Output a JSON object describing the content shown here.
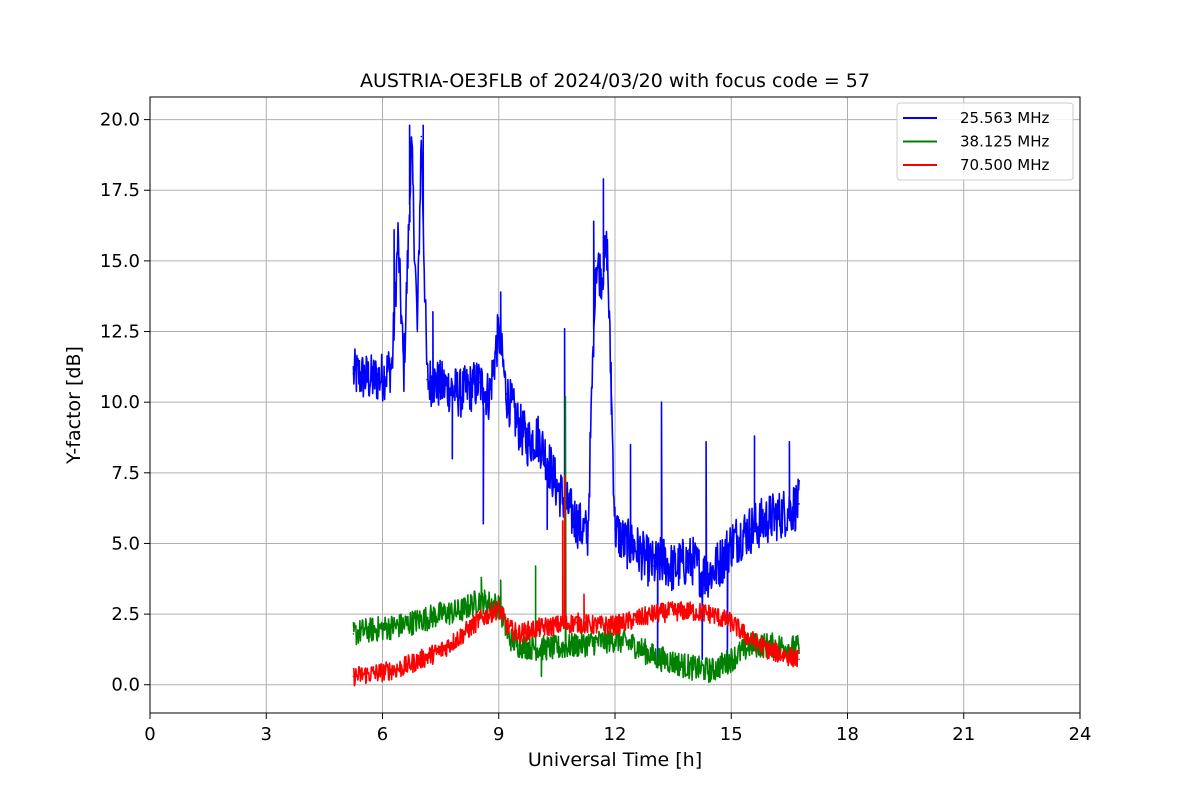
{
  "chart_data": {
    "type": "line",
    "title": "AUSTRIA-OE3FLB of 2024/03/20 with focus code = 57",
    "xlabel": "Universal Time [h]",
    "ylabel": "Y-factor [dB]",
    "xlim": [
      0,
      24
    ],
    "ylim": [
      -1.0,
      20.8
    ],
    "x_ticks": [
      0,
      3,
      6,
      9,
      12,
      15,
      18,
      21,
      24
    ],
    "x_tick_labels": [
      "0",
      "3",
      "6",
      "9",
      "12",
      "15",
      "18",
      "21",
      "24"
    ],
    "y_ticks": [
      0.0,
      2.5,
      5.0,
      7.5,
      10.0,
      12.5,
      15.0,
      17.5,
      20.0
    ],
    "y_tick_labels": [
      "0.0",
      "2.5",
      "5.0",
      "7.5",
      "10.0",
      "12.5",
      "15.0",
      "17.5",
      "20.0"
    ],
    "grid": true,
    "legend_position": "top-right",
    "series": [
      {
        "name": "25.563 MHz",
        "color": "#0000ff",
        "points": [
          [
            5.25,
            11.0
          ],
          [
            5.5,
            10.9
          ],
          [
            5.75,
            10.8
          ],
          [
            6.0,
            10.9
          ],
          [
            6.25,
            11.3
          ],
          [
            6.4,
            15.8
          ],
          [
            6.55,
            11.0
          ],
          [
            6.75,
            19.0
          ],
          [
            6.9,
            12.5
          ],
          [
            7.0,
            19.4
          ],
          [
            7.15,
            10.8
          ],
          [
            7.5,
            10.6
          ],
          [
            7.75,
            10.5
          ],
          [
            8.0,
            10.3
          ],
          [
            8.25,
            10.5
          ],
          [
            8.5,
            10.7
          ],
          [
            8.75,
            10.2
          ],
          [
            9.0,
            12.5
          ],
          [
            9.2,
            10.3
          ],
          [
            9.5,
            9.2
          ],
          [
            9.75,
            8.6
          ],
          [
            10.0,
            8.8
          ],
          [
            10.25,
            8.0
          ],
          [
            10.5,
            7.0
          ],
          [
            10.7,
            6.5
          ],
          [
            10.9,
            6.0
          ],
          [
            11.1,
            5.6
          ],
          [
            11.3,
            5.3
          ],
          [
            11.5,
            15.0
          ],
          [
            11.65,
            14.5
          ],
          [
            11.8,
            15.5
          ],
          [
            12.0,
            5.5
          ],
          [
            12.25,
            5.0
          ],
          [
            12.5,
            4.9
          ],
          [
            12.75,
            4.5
          ],
          [
            13.0,
            4.2
          ],
          [
            13.25,
            4.4
          ],
          [
            13.5,
            4.1
          ],
          [
            13.75,
            4.3
          ],
          [
            14.0,
            4.4
          ],
          [
            14.25,
            3.9
          ],
          [
            14.5,
            4.0
          ],
          [
            14.75,
            4.4
          ],
          [
            15.0,
            5.0
          ],
          [
            15.25,
            5.3
          ],
          [
            15.5,
            5.5
          ],
          [
            15.75,
            5.7
          ],
          [
            16.0,
            5.9
          ],
          [
            16.25,
            6.0
          ],
          [
            16.5,
            6.2
          ],
          [
            16.75,
            6.4
          ]
        ],
        "spikes": [
          [
            6.3,
            16.1
          ],
          [
            6.7,
            19.8
          ],
          [
            7.05,
            19.8
          ],
          [
            7.3,
            13.2
          ],
          [
            7.8,
            8.0
          ],
          [
            8.6,
            5.7
          ],
          [
            9.05,
            13.9
          ],
          [
            10.25,
            5.5
          ],
          [
            10.7,
            12.6
          ],
          [
            11.45,
            16.4
          ],
          [
            11.7,
            17.9
          ],
          [
            11.9,
            11.4
          ],
          [
            12.4,
            8.5
          ],
          [
            13.2,
            10.0
          ],
          [
            13.1,
            0.6
          ],
          [
            14.25,
            0.9
          ],
          [
            14.35,
            8.6
          ],
          [
            14.9,
            0.9
          ],
          [
            15.6,
            8.8
          ],
          [
            16.5,
            8.6
          ]
        ]
      },
      {
        "name": "38.125 MHz",
        "color": "#008000",
        "points": [
          [
            5.25,
            1.8
          ],
          [
            5.5,
            1.9
          ],
          [
            6.0,
            2.0
          ],
          [
            6.5,
            2.1
          ],
          [
            7.0,
            2.3
          ],
          [
            7.5,
            2.5
          ],
          [
            8.0,
            2.6
          ],
          [
            8.5,
            3.0
          ],
          [
            9.0,
            2.8
          ],
          [
            9.25,
            1.7
          ],
          [
            9.5,
            1.4
          ],
          [
            10.0,
            1.3
          ],
          [
            10.5,
            1.3
          ],
          [
            11.0,
            1.4
          ],
          [
            11.5,
            1.5
          ],
          [
            12.0,
            1.6
          ],
          [
            12.5,
            1.4
          ],
          [
            13.0,
            1.0
          ],
          [
            13.5,
            0.8
          ],
          [
            14.0,
            0.6
          ],
          [
            14.5,
            0.5
          ],
          [
            15.0,
            0.9
          ],
          [
            15.5,
            1.4
          ],
          [
            16.0,
            1.4
          ],
          [
            16.75,
            1.3
          ]
        ],
        "spikes": [
          [
            8.55,
            3.8
          ],
          [
            9.05,
            3.7
          ],
          [
            9.95,
            4.2
          ],
          [
            10.1,
            0.3
          ],
          [
            10.72,
            10.2
          ]
        ]
      },
      {
        "name": "70.500 MHz",
        "color": "#ff0000",
        "points": [
          [
            5.25,
            0.3
          ],
          [
            5.5,
            0.35
          ],
          [
            6.0,
            0.45
          ],
          [
            6.5,
            0.6
          ],
          [
            7.0,
            0.9
          ],
          [
            7.5,
            1.2
          ],
          [
            8.0,
            1.7
          ],
          [
            8.5,
            2.3
          ],
          [
            9.0,
            2.7
          ],
          [
            9.25,
            2.0
          ],
          [
            9.5,
            1.8
          ],
          [
            10.0,
            2.0
          ],
          [
            10.5,
            2.1
          ],
          [
            11.0,
            2.2
          ],
          [
            11.5,
            2.1
          ],
          [
            12.0,
            2.1
          ],
          [
            12.5,
            2.3
          ],
          [
            13.0,
            2.5
          ],
          [
            13.5,
            2.6
          ],
          [
            14.0,
            2.6
          ],
          [
            14.5,
            2.5
          ],
          [
            15.0,
            2.2
          ],
          [
            15.5,
            1.6
          ],
          [
            16.0,
            1.2
          ],
          [
            16.5,
            1.0
          ],
          [
            16.75,
            0.9
          ]
        ],
        "spikes": [
          [
            10.65,
            5.8
          ],
          [
            10.7,
            7.4
          ],
          [
            11.2,
            3.2
          ]
        ]
      }
    ]
  }
}
